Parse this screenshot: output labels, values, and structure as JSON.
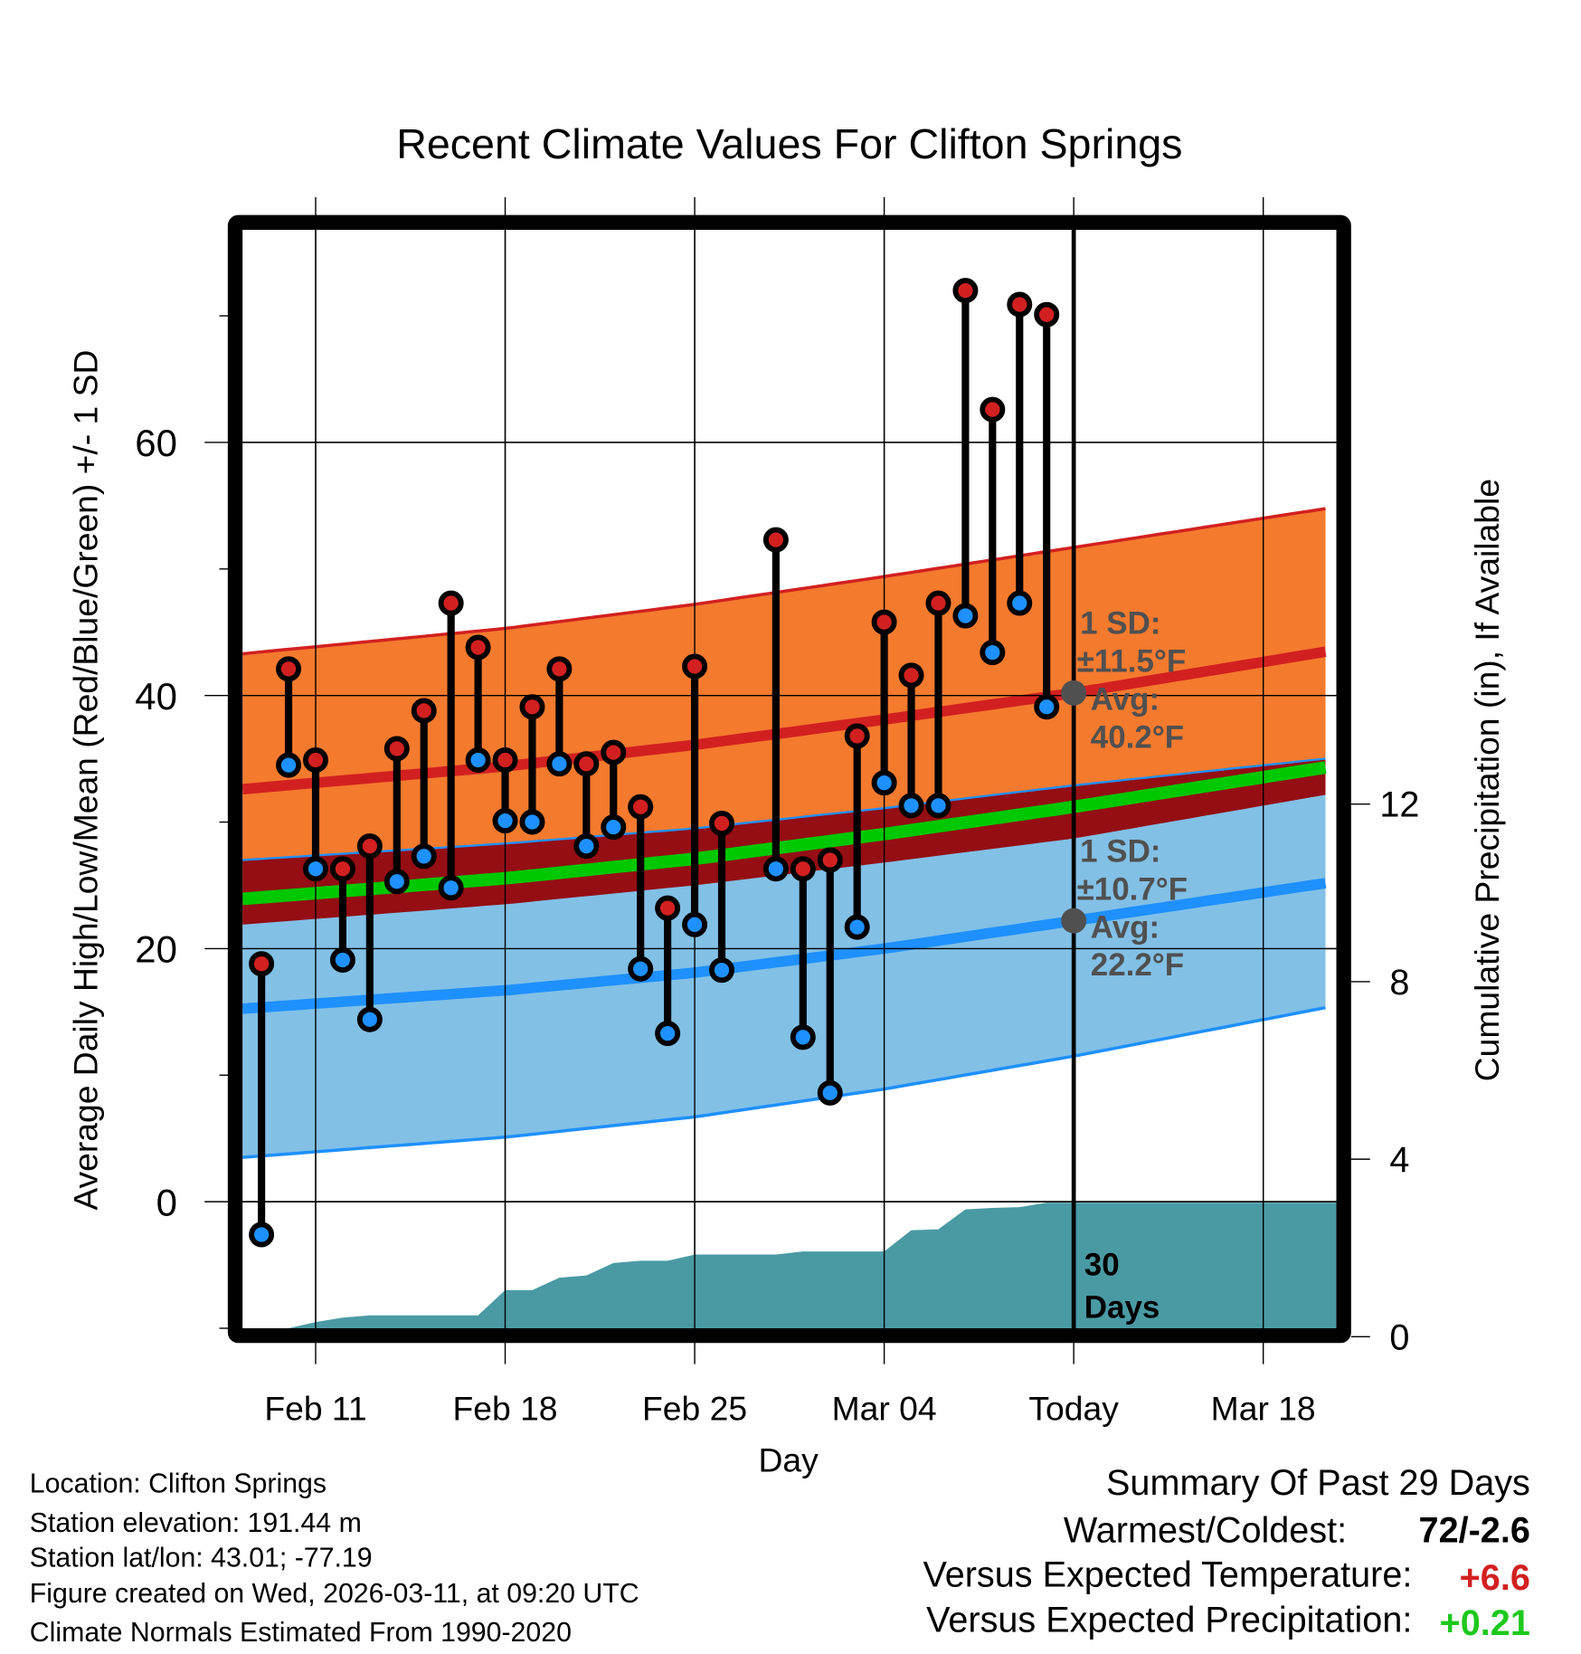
{
  "chart_data": {
    "type": "line",
    "title": "Recent Climate Values For Clifton Springs",
    "xlabel": "Day",
    "ylabel": "Average Daily High/Low/Mean (Red/Blue/Green) +/- 1 SD",
    "y2label": "Cumulative Precipitation (in), If Available",
    "x_unit": "days since Feb 9",
    "xlim": [
      -0.7,
      39.7
    ],
    "ylim": [
      -10,
      76.8
    ],
    "y2lim": [
      0,
      20.8
    ],
    "grid": true,
    "x_ticks": [
      {
        "day": 2,
        "label": "Feb 11"
      },
      {
        "day": 9,
        "label": "Feb 18"
      },
      {
        "day": 16,
        "label": "Feb 25"
      },
      {
        "day": 23,
        "label": "Mar 04"
      },
      {
        "day": 30,
        "label": "Today"
      },
      {
        "day": 37,
        "label": "Mar 18"
      }
    ],
    "y_ticks": [
      {
        "v": 0,
        "label": "0"
      },
      {
        "v": 20,
        "label": "20"
      },
      {
        "v": 40,
        "label": "40"
      },
      {
        "v": 60,
        "label": "60"
      }
    ],
    "y_minor_ticks": [
      -10,
      10,
      30,
      50,
      70
    ],
    "y2_ticks": [
      {
        "v": 0,
        "label": "0"
      },
      {
        "v": 4,
        "label": "4"
      },
      {
        "v": 8,
        "label": "8"
      },
      {
        "v": 12,
        "label": "12"
      }
    ],
    "daily": [
      {
        "day": 0,
        "high": 18.8,
        "low": -2.6
      },
      {
        "day": 1,
        "high": 42.1,
        "low": 34.5
      },
      {
        "day": 2,
        "high": 34.9,
        "low": 26.3
      },
      {
        "day": 3,
        "high": 26.3,
        "low": 19.1
      },
      {
        "day": 4,
        "high": 28.1,
        "low": 14.4
      },
      {
        "day": 5,
        "high": 35.8,
        "low": 25.3
      },
      {
        "day": 6,
        "high": 38.8,
        "low": 27.3
      },
      {
        "day": 7,
        "high": 47.3,
        "low": 24.8
      },
      {
        "day": 8,
        "high": 43.8,
        "low": 34.9
      },
      {
        "day": 9,
        "high": 34.9,
        "low": 30.1
      },
      {
        "day": 10,
        "high": 39.1,
        "low": 30.0
      },
      {
        "day": 11,
        "high": 42.1,
        "low": 34.6
      },
      {
        "day": 12,
        "high": 34.6,
        "low": 28.1
      },
      {
        "day": 13,
        "high": 35.5,
        "low": 29.6
      },
      {
        "day": 14,
        "high": 31.2,
        "low": 18.4
      },
      {
        "day": 15,
        "high": 23.2,
        "low": 13.3
      },
      {
        "day": 16,
        "high": 42.3,
        "low": 21.9
      },
      {
        "day": 17,
        "high": 29.9,
        "low": 18.3
      },
      {
        "day": 19,
        "high": 52.3,
        "low": 26.3
      },
      {
        "day": 20,
        "high": 26.3,
        "low": 13.0
      },
      {
        "day": 21,
        "high": 27.0,
        "low": 8.6
      },
      {
        "day": 22,
        "high": 36.8,
        "low": 21.7
      },
      {
        "day": 23,
        "high": 45.8,
        "low": 33.1
      },
      {
        "day": 24,
        "high": 41.6,
        "low": 31.3
      },
      {
        "day": 25,
        "high": 47.3,
        "low": 31.3
      },
      {
        "day": 26,
        "high": 72.0,
        "low": 46.3
      },
      {
        "day": 27,
        "high": 62.6,
        "low": 43.4
      },
      {
        "day": 28,
        "high": 70.9,
        "low": 47.3
      },
      {
        "day": 29,
        "high": 70.1,
        "low": 39.1
      }
    ],
    "normals": {
      "days": [
        -0.7,
        9,
        16,
        23,
        30,
        39.7
      ],
      "high_mean": [
        32.6,
        34.4,
        36.1,
        38.1,
        40.2,
        43.6
      ],
      "high_sd": [
        10.7,
        10.9,
        11.1,
        11.3,
        11.5,
        11.3
      ],
      "low_mean": [
        15.25,
        16.7,
        18.1,
        20.0,
        22.2,
        25.3
      ],
      "low_sd": [
        11.75,
        11.6,
        11.4,
        11.1,
        10.7,
        9.8
      ]
    },
    "precip_cumulative": {
      "days": [
        0,
        1,
        2,
        3,
        4,
        8,
        9,
        10,
        11,
        12,
        13,
        14,
        15,
        16,
        19,
        20,
        23,
        24,
        25,
        26,
        27,
        28,
        29,
        39.7
      ],
      "values": [
        0.1,
        0.19,
        0.33,
        0.43,
        0.48,
        0.48,
        1.05,
        1.05,
        1.33,
        1.38,
        1.66,
        1.71,
        1.71,
        1.85,
        1.85,
        1.92,
        1.92,
        2.4,
        2.42,
        2.87,
        2.9,
        2.92,
        3.02,
        3.02
      ]
    },
    "today_day": 30,
    "annotations": {
      "high": {
        "sd_label": "1 SD:",
        "sd_value": "±11.5°F",
        "avg_label": "Avg:",
        "avg_value": "40.2°F",
        "avg": 40.2
      },
      "low": {
        "sd_label": "1 SD:",
        "sd_value": "±10.7°F",
        "avg_label": "Avg:",
        "avg_value": "22.2°F",
        "avg": 22.2
      },
      "days_count": "30",
      "days_label": "Days"
    },
    "colors": {
      "high_band": "#f47a2e",
      "overlap_band": "#940e14",
      "low_band": "#82c0e6",
      "mean_line": "#00c800",
      "high_line": "#d22020",
      "low_line": "#1e90ff",
      "precip": "#4a9aa4",
      "annotation": "#505050"
    }
  },
  "footer": {
    "location": "Location: Clifton Springs",
    "elevation": "Station elevation: 191.44 m",
    "latlon": "Station lat/lon: 43.01; -77.19",
    "created": "Figure created on Wed, 2026-03-11, at 09:20 UTC",
    "normals": "Climate Normals Estimated From 1990-2020"
  },
  "summary": {
    "title": "Summary Of Past 29 Days",
    "warmest_label": "Warmest/Coldest:",
    "warmest_value": "72/-2.6",
    "temp_label": "Versus Expected Temperature:",
    "temp_value": "+6.6",
    "temp_color": "#d22020",
    "precip_label": "Versus Expected Precipitation:",
    "precip_value": "+0.21",
    "precip_color": "#1ec81e"
  }
}
